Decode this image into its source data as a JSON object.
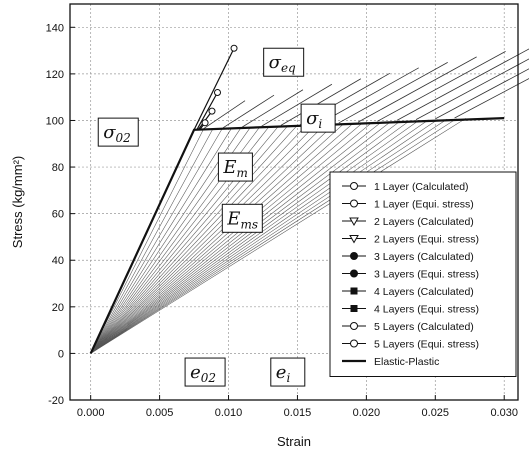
{
  "chart_data": {
    "type": "line",
    "xlabel": "Strain",
    "ylabel": "Stress (kg/mm²)",
    "xlim": [
      -0.0015,
      0.031
    ],
    "ylim": [
      -20,
      150
    ],
    "x_ticks": [
      "0.000",
      "0.005",
      "0.010",
      "0.015",
      "0.020",
      "0.025",
      "0.030"
    ],
    "y_ticks": [
      "-20",
      "0",
      "20",
      "40",
      "60",
      "80",
      "100",
      "120",
      "140"
    ],
    "grid": true,
    "legend_position": "right",
    "legend": [
      "1 Layer (Calculated)",
      "1 Layer (Equi. stress)",
      "2 Layers (Calculated)",
      "2 Layers (Equi. stress)",
      "3 Layers (Calculated)",
      "3 Layers (Equi. stress)",
      "4 Layers (Calculated)",
      "4 Layers (Equi. stress)",
      "5 Layers (Calculated)",
      "5 Layers (Equi. stress)",
      "Elastic-Plastic"
    ],
    "series": [
      {
        "name": "Elastic-Plastic",
        "x": [
          0,
          0.0075,
          0.03
        ],
        "y": [
          0,
          96,
          101
        ]
      },
      {
        "name": "1 Layer (Calculated)",
        "x": [
          0.0075,
          0.0104
        ],
        "y": [
          96,
          131
        ]
      },
      {
        "name": "2 Layers (Calculated)",
        "x": [
          0.0077,
          0.0092
        ],
        "y": [
          96,
          112
        ]
      },
      {
        "name": "3 Layers (Calculated)",
        "x": [
          0.0078,
          0.0088
        ],
        "y": [
          96,
          104
        ]
      },
      {
        "name": "4 Layers (Calculated)",
        "x": [
          0.0079,
          0.0083
        ],
        "y": [
          96,
          99
        ]
      }
    ],
    "annotations": [
      {
        "text": "σ",
        "sub": "eq",
        "x": 0.014,
        "y": 125
      },
      {
        "text": "σ",
        "sub": "i",
        "x": 0.0165,
        "y": 101
      },
      {
        "text": "σ",
        "sub": "02",
        "x": 0.002,
        "y": 95
      },
      {
        "text": "E",
        "sub": "m",
        "x": 0.0105,
        "y": 80
      },
      {
        "text": "E",
        "sub": "ms",
        "x": 0.011,
        "y": 58
      },
      {
        "text": "e",
        "sub": "02",
        "x": 0.0083,
        "y": -8
      },
      {
        "text": "e",
        "sub": "i",
        "x": 0.0143,
        "y": -8
      }
    ]
  }
}
